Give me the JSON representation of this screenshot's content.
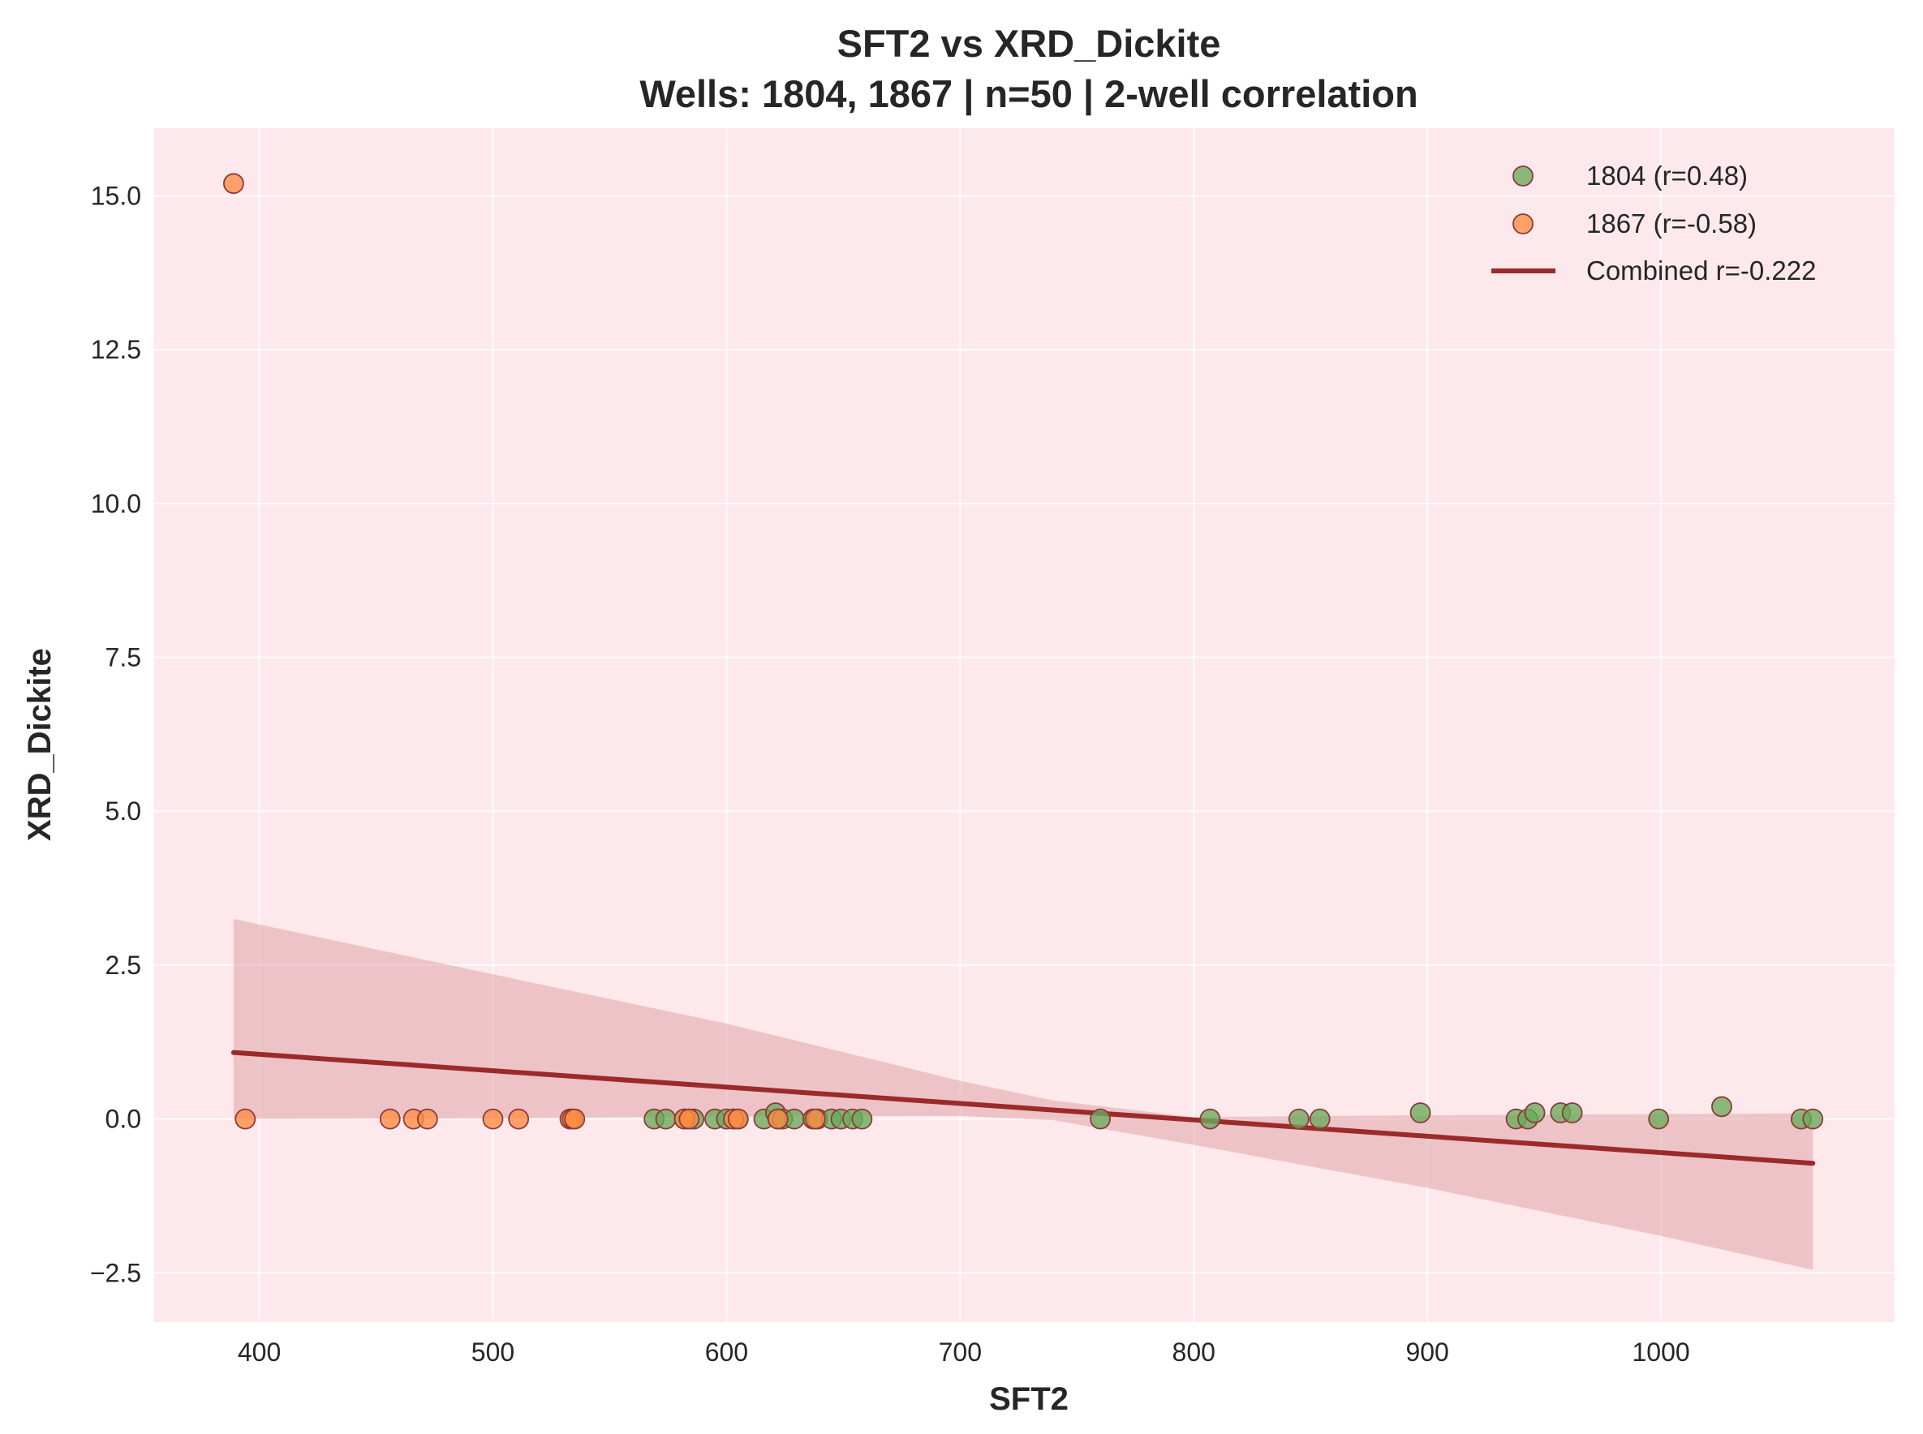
{
  "chart_data": {
    "type": "scatter",
    "title_line1": "SFT2 vs XRD_Dickite",
    "title_line2": "Wells: 1804, 1867 | n=50 | 2-well correlation",
    "xlabel": "SFT2",
    "ylabel": "XRD_Dickite",
    "xlim": [
      355,
      1100
    ],
    "ylim": [
      -3.3,
      16.1
    ],
    "x_ticks": [
      400,
      500,
      600,
      700,
      800,
      900,
      1000
    ],
    "y_ticks": [
      -2.5,
      0.0,
      2.5,
      5.0,
      7.5,
      10.0,
      12.5,
      15.0
    ],
    "x_tick_labels": [
      "400",
      "500",
      "600",
      "700",
      "800",
      "900",
      "1000"
    ],
    "y_tick_labels": [
      "−2.5",
      "0.0",
      "2.5",
      "5.0",
      "7.5",
      "10.0",
      "12.5",
      "15.0"
    ],
    "grid": true,
    "legend_position": "top-right",
    "background_color": "#fde9ec",
    "series": [
      {
        "name": "1804 (r=0.48)",
        "color": "#6aaa5a",
        "edge_color": "#8b3a3a",
        "points": [
          {
            "x": 569,
            "y": 0.0
          },
          {
            "x": 574,
            "y": 0.0
          },
          {
            "x": 582,
            "y": 0.0
          },
          {
            "x": 584,
            "y": 0.0
          },
          {
            "x": 586,
            "y": 0.0
          },
          {
            "x": 595,
            "y": 0.0
          },
          {
            "x": 600,
            "y": 0.0
          },
          {
            "x": 603,
            "y": 0.0
          },
          {
            "x": 605,
            "y": 0.0
          },
          {
            "x": 616,
            "y": 0.0
          },
          {
            "x": 621,
            "y": 0.1
          },
          {
            "x": 622,
            "y": 0.0
          },
          {
            "x": 624,
            "y": 0.0
          },
          {
            "x": 629,
            "y": 0.0
          },
          {
            "x": 637,
            "y": 0.0
          },
          {
            "x": 639,
            "y": 0.0
          },
          {
            "x": 645,
            "y": 0.0
          },
          {
            "x": 649,
            "y": 0.0
          },
          {
            "x": 654,
            "y": 0.0
          },
          {
            "x": 658,
            "y": 0.0
          },
          {
            "x": 760,
            "y": 0.0
          },
          {
            "x": 807,
            "y": 0.0
          },
          {
            "x": 845,
            "y": 0.0
          },
          {
            "x": 854,
            "y": 0.0
          },
          {
            "x": 897,
            "y": 0.1
          },
          {
            "x": 938,
            "y": 0.0
          },
          {
            "x": 943,
            "y": 0.0
          },
          {
            "x": 946,
            "y": 0.1
          },
          {
            "x": 957,
            "y": 0.1
          },
          {
            "x": 962,
            "y": 0.1
          },
          {
            "x": 999,
            "y": 0.0
          },
          {
            "x": 1026,
            "y": 0.2
          },
          {
            "x": 1060,
            "y": 0.0
          },
          {
            "x": 1065,
            "y": 0.0
          }
        ]
      },
      {
        "name": "1867 (r=-0.58)",
        "color": "#ff8c42",
        "edge_color": "#8b3a3a",
        "points": [
          {
            "x": 389,
            "y": 15.2
          },
          {
            "x": 394,
            "y": 0.0
          },
          {
            "x": 456,
            "y": 0.0
          },
          {
            "x": 466,
            "y": 0.0
          },
          {
            "x": 472,
            "y": 0.0
          },
          {
            "x": 500,
            "y": 0.0
          },
          {
            "x": 511,
            "y": 0.0
          },
          {
            "x": 533,
            "y": 0.0
          },
          {
            "x": 534,
            "y": 0.0
          },
          {
            "x": 535,
            "y": 0.0
          },
          {
            "x": 582,
            "y": 0.0
          },
          {
            "x": 584,
            "y": 0.0
          },
          {
            "x": 603,
            "y": 0.0
          },
          {
            "x": 605,
            "y": 0.0
          },
          {
            "x": 622,
            "y": 0.0
          },
          {
            "x": 638,
            "y": 0.0
          }
        ]
      }
    ],
    "regression": {
      "name": "Combined r=-0.222",
      "color": "#9b2a2a",
      "band_color": "#d9959c",
      "line": [
        {
          "x": 389,
          "y": 1.08
        },
        {
          "x": 1065,
          "y": -0.72
        }
      ],
      "band": [
        {
          "x": 389,
          "upper": 3.25,
          "lower": 0.0
        },
        {
          "x": 500,
          "upper": 2.35,
          "lower": 0.01
        },
        {
          "x": 600,
          "upper": 1.55,
          "lower": 0.04
        },
        {
          "x": 700,
          "upper": 0.62,
          "lower": 0.05
        },
        {
          "x": 740,
          "upper": 0.3,
          "lower": -0.02
        },
        {
          "x": 800,
          "upper": 0.03,
          "lower": -0.42
        },
        {
          "x": 900,
          "upper": 0.06,
          "lower": -1.12
        },
        {
          "x": 1000,
          "upper": 0.08,
          "lower": -1.9
        },
        {
          "x": 1065,
          "upper": 0.09,
          "lower": -2.45
        }
      ]
    }
  }
}
